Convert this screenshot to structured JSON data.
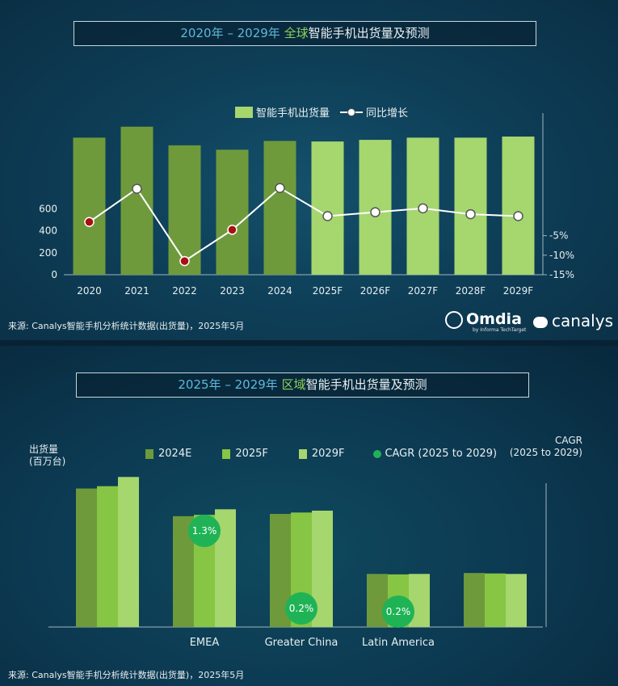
{
  "top": {
    "title_year_range": "2020年 – 2029年",
    "title_highlight": "全球",
    "title_rest": "智能手机出货量及预测",
    "legend_bar": "智能手机出货量",
    "legend_line": "同比增长",
    "source": "来源: Canalys智能手机分析统计数据(出货量)，2025年5月",
    "logo_omdia": "Omdia",
    "logo_omdia_sub": "by Informa TechTarget",
    "logo_canalys": "canalys"
  },
  "bottom": {
    "title_year_range": "2025年 – 2029年",
    "title_highlight": "区域",
    "title_rest": "智能手机出货量及预测",
    "ylabel_line1": "出货量",
    "ylabel_line2": "(百万台)",
    "cagr_label_line1": "CAGR",
    "cagr_label_line2": "(2025 to 2029)",
    "legend": [
      "2024E",
      "2025F",
      "2029F",
      "CAGR (2025 to 2029)"
    ],
    "source": "来源: Canalys智能手机分析统计数据(出货量)，2025年5月"
  },
  "colors": {
    "actual": "#6e9a3c",
    "forecast": "#a6d66e",
    "bar_2024": "#6e9a3c",
    "bar_2025": "#86c644",
    "bar_2029": "#a6d66e",
    "cagr_circle": "#1fb356",
    "marker_red": "#a81010"
  },
  "chart_data": [
    {
      "type": "bar",
      "categories": [
        "2020",
        "2021",
        "2022",
        "2023",
        "2024",
        "2025F",
        "2026F",
        "2027F",
        "2028F",
        "2029F"
      ],
      "series": [
        {
          "name": "智能手机出货量",
          "values": [
            1250,
            1350,
            1180,
            1140,
            1220,
            1215,
            1230,
            1250,
            1250,
            1260
          ]
        },
        {
          "name": "同比增长",
          "values": [
            -1.5,
            7,
            -11.5,
            -3.5,
            7.2,
            0,
            1,
            2,
            0.5,
            0
          ]
        }
      ],
      "yticks_left": [
        "0",
        "200",
        "400",
        "600"
      ],
      "ylim_left": [
        0,
        1400
      ],
      "yticks_right": [
        "-5%",
        "-10%",
        "-15%"
      ],
      "ylim_right": [
        -15,
        15
      ],
      "actual_count": 5,
      "legend_position": "top"
    },
    {
      "type": "bar",
      "categories": [
        "",
        "EMEA",
        "Greater China",
        "Latin America",
        ""
      ],
      "series": [
        {
          "name": "2024E",
          "values": [
            300,
            240,
            245,
            115,
            117
          ]
        },
        {
          "name": "2025F",
          "values": [
            305,
            243,
            248,
            114,
            116
          ]
        },
        {
          "name": "2029F",
          "values": [
            325,
            255,
            252,
            115,
            115
          ]
        },
        {
          "name": "CAGR (2025 to 2029)",
          "values": [
            null,
            1.3,
            0.2,
            0.2,
            null
          ]
        }
      ],
      "cagr_labels": [
        "",
        "1.3%",
        "0.2%",
        "0.2%",
        ""
      ],
      "ylim": [
        0,
        350
      ],
      "legend_position": "top"
    }
  ]
}
